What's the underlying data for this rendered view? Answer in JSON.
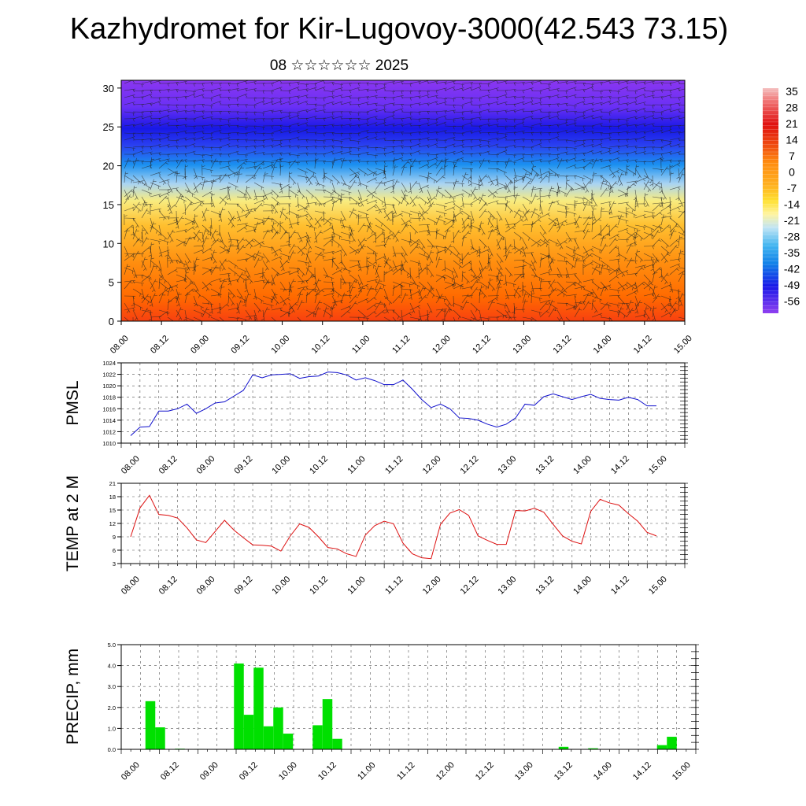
{
  "header": {
    "title": "Kazhydromet for Kir-Lugovoy-3000(42.543 73.15)",
    "subtitle": "08 ☆☆☆☆☆☆ 2025"
  },
  "colors": {
    "pmsl_line": "#1010cc",
    "temp_line": "#dd1010",
    "precip_bar": "#00e000"
  },
  "chart_data": [
    {
      "type": "heatmap",
      "name_id": "vertical-section",
      "title": "",
      "xlabel": "",
      "ylabel": "",
      "x_ticks": [
        "08.00",
        "08.12",
        "09.00",
        "09.12",
        "10.00",
        "10.12",
        "11.00",
        "11.12",
        "12.00",
        "12.12",
        "13.00",
        "13.12",
        "14.00",
        "14.12",
        "15.00"
      ],
      "y_ticks": [
        "0",
        "5",
        "10",
        "15",
        "20",
        "25",
        "30"
      ],
      "ylim": [
        0,
        31
      ],
      "overlay": "wind barbs",
      "colorbar": {
        "labels": [
          "35",
          "28",
          "21",
          "14",
          "7",
          "0",
          "-7",
          "-14",
          "-21",
          "-28",
          "-35",
          "-42",
          "-49",
          "-56"
        ],
        "range": [
          -56,
          35
        ]
      }
    },
    {
      "type": "line",
      "name_id": "pmsl",
      "ylabel": "PMSL",
      "y_ticks": [
        "1024",
        "1022",
        "1020",
        "1018",
        "1016",
        "1014",
        "1012",
        "1010"
      ],
      "ylim": [
        1010,
        1024
      ],
      "x_ticks": [
        "08.00",
        "08.12",
        "09.00",
        "09.12",
        "10.00",
        "10.12",
        "11.00",
        "11.12",
        "12.00",
        "12.12",
        "13.00",
        "13.12",
        "14.00",
        "14.12",
        "15.00"
      ],
      "x": [
        0,
        3,
        6,
        9,
        12,
        15,
        18,
        21,
        24,
        27,
        30,
        33,
        36,
        39,
        42,
        45,
        48,
        51,
        54,
        57,
        60,
        63,
        66,
        69,
        72,
        75,
        78,
        81,
        84,
        87,
        90,
        93,
        96,
        99,
        102,
        105,
        108,
        111,
        114,
        117,
        120,
        123,
        126,
        129,
        132,
        135,
        138,
        141,
        144,
        147,
        150,
        153,
        156,
        159,
        162,
        165,
        168
      ],
      "values": [
        1011.3,
        1012.8,
        1012.9,
        1015.6,
        1015.6,
        1016.0,
        1016.8,
        1015.2,
        1016.0,
        1017.0,
        1017.2,
        1018.2,
        1019.2,
        1021.9,
        1021.4,
        1021.9,
        1022.0,
        1022.1,
        1021.3,
        1021.6,
        1021.7,
        1022.4,
        1022.3,
        1021.9,
        1021.0,
        1021.4,
        1020.9,
        1020.2,
        1020.2,
        1021.0,
        1019.4,
        1017.6,
        1016.2,
        1016.8,
        1016.0,
        1014.4,
        1014.3,
        1014.0,
        1013.3,
        1012.8,
        1013.3,
        1014.4,
        1016.8,
        1016.6,
        1018.1,
        1018.6,
        1018.1,
        1017.6,
        1018.1,
        1018.5,
        1017.8,
        1017.6,
        1017.5,
        1018.0,
        1017.6,
        1016.5,
        1016.5
      ]
    },
    {
      "type": "line",
      "name_id": "temp",
      "ylabel": "TEMP at 2 M",
      "y_ticks": [
        "21",
        "18",
        "15",
        "12",
        "9",
        "6",
        "3"
      ],
      "ylim": [
        3,
        21
      ],
      "x_ticks": [
        "08.00",
        "08.12",
        "09.00",
        "09.12",
        "10.00",
        "10.12",
        "11.00",
        "11.12",
        "12.00",
        "12.12",
        "13.00",
        "13.12",
        "14.00",
        "14.12",
        "15.00"
      ],
      "x": [
        0,
        3,
        6,
        9,
        12,
        15,
        18,
        21,
        24,
        27,
        30,
        33,
        36,
        39,
        42,
        45,
        48,
        51,
        54,
        57,
        60,
        63,
        66,
        69,
        72,
        75,
        78,
        81,
        84,
        87,
        90,
        93,
        96,
        99,
        102,
        105,
        108,
        111,
        114,
        117,
        120,
        123,
        126,
        129,
        132,
        135,
        138,
        141,
        144,
        147,
        150,
        153,
        156,
        159,
        162,
        165,
        168
      ],
      "values": [
        9.0,
        15.5,
        18.3,
        14.0,
        13.8,
        13.2,
        11.0,
        8.3,
        7.7,
        10.2,
        12.7,
        10.5,
        8.8,
        7.2,
        7.1,
        6.9,
        5.8,
        9.2,
        11.9,
        11.1,
        9.0,
        6.6,
        6.3,
        5.2,
        4.6,
        9.4,
        11.5,
        12.5,
        11.9,
        7.6,
        5.2,
        4.3,
        4.1,
        11.8,
        14.3,
        15.1,
        13.8,
        9.2,
        8.2,
        7.3,
        7.3,
        14.9,
        14.8,
        15.4,
        14.5,
        11.8,
        9.2,
        8.0,
        7.4,
        14.7,
        17.4,
        16.6,
        16.1,
        14.2,
        12.5,
        10.0,
        9.2
      ]
    },
    {
      "type": "bar",
      "name_id": "precip",
      "ylabel": "PRECIP, mm",
      "y_ticks": [
        "5.0",
        "4.0",
        "3.0",
        "2.0",
        "1.0",
        "0.0"
      ],
      "ylim": [
        0,
        5
      ],
      "x_ticks": [
        "08.00",
        "08.12",
        "09.00",
        "09.12",
        "10.00",
        "10.12",
        "11.00",
        "11.12",
        "12.00",
        "12.12",
        "13.00",
        "13.12",
        "14.00",
        "14.12",
        "15.00"
      ],
      "x": [
        6,
        9,
        12,
        15,
        18,
        21,
        24,
        27,
        30,
        33,
        36,
        39,
        42,
        45,
        48,
        51,
        54,
        57,
        60,
        63,
        66,
        69,
        72,
        75,
        78,
        81,
        84,
        87,
        90,
        93,
        96,
        99,
        102,
        105,
        108,
        111,
        114,
        117,
        120,
        123,
        126,
        129,
        132,
        135,
        138,
        141,
        144,
        147,
        150,
        153,
        156,
        159,
        162,
        165
      ],
      "values": [
        2.3,
        1.05,
        0,
        0.03,
        0,
        0.02,
        0,
        0,
        0,
        4.1,
        1.65,
        3.9,
        1.1,
        2.0,
        0.75,
        0,
        0,
        1.15,
        2.4,
        0.5,
        0,
        0,
        0,
        0,
        0,
        0,
        0,
        0,
        0,
        0,
        0,
        0,
        0,
        0,
        0,
        0,
        0,
        0,
        0,
        0,
        0,
        0,
        0.12,
        0,
        0,
        0.05,
        0,
        0,
        0,
        0,
        0,
        0,
        0.2,
        0.6
      ]
    }
  ]
}
